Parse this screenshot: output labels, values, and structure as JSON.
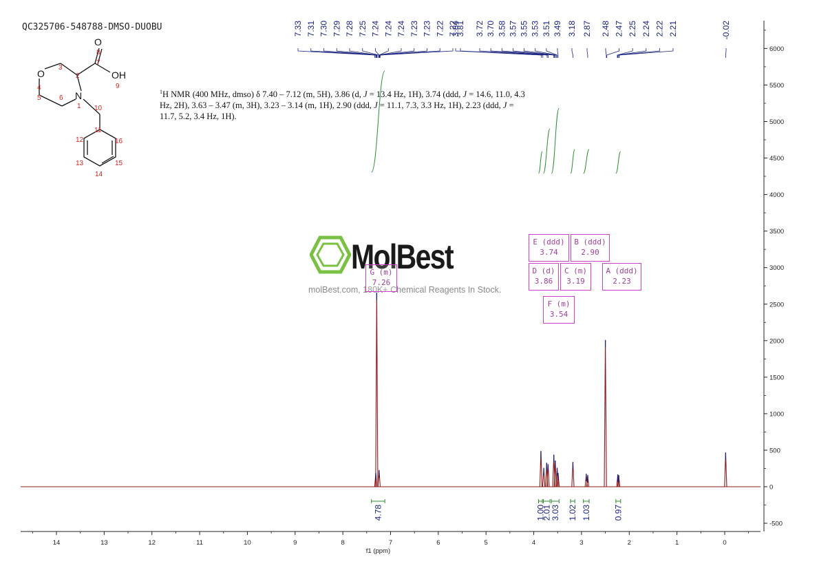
{
  "sample_id": "QC325706-548788-DMSO-DUOBU",
  "nmr_description": {
    "line1_a": "H NMR (400 MHz, dmso) δ 7.40 – 7.12 (m, 5H), 3.86 (d, ",
    "line1_j": "J",
    "line1_b": " = 13.4 Hz, 1H), 3.74 (ddd, ",
    "line1_c": " = 14.6, 11.0, 4.3",
    "line2_a": "Hz, 2H), 3.63 – 3.47 (m, 3H), 3.23 – 3.14 (m, 1H), 2.90 (ddd, ",
    "line2_b": " = 11.1, 7.3, 3.3 Hz, 1H), 2.23 (ddd, ",
    "line2_c": " =",
    "line3": "11.7, 5.2, 3.4 Hz, 1H).",
    "superscript": "1"
  },
  "watermark": {
    "logo_text": "MolBest",
    "url_text": "molBest.com, 180K+ Chemical Reagents In Stock."
  },
  "structure": {
    "atoms": [
      "O",
      "OH",
      "O",
      "N"
    ],
    "numbers": [
      "8",
      "7",
      "9",
      "3",
      "2",
      "4",
      "5",
      "1",
      "6",
      "10",
      "11",
      "12",
      "16",
      "13",
      "15",
      "14"
    ]
  },
  "multiplets": [
    {
      "label": "E (ddd)",
      "shift": "3.74"
    },
    {
      "label": "B (ddd)",
      "shift": "2.90"
    },
    {
      "label": "D (d)",
      "shift": "3.86"
    },
    {
      "label": "C (m)",
      "shift": "3.19"
    },
    {
      "label": "A (ddd)",
      "shift": "2.23"
    },
    {
      "label": "F (m)",
      "shift": "3.54"
    },
    {
      "label": "G (m)",
      "shift": "7.26"
    }
  ],
  "colors": {
    "spectrum": "#8b1a1a",
    "peak_labels": "#1a237e",
    "integrals": "#2e8b2e",
    "multiplet_boxes": "#d03fc8",
    "structure_numbers": "#d42020",
    "logo_green": "#7ac143"
  },
  "chart_data": {
    "type": "line",
    "title": "",
    "xlabel": "f1 (ppm)",
    "ylabel": "",
    "x_reversed": true,
    "xlim": [
      14.75,
      -0.75
    ],
    "ylim": [
      -600,
      6400
    ],
    "x_ticks": [
      14,
      13,
      12,
      11,
      10,
      9,
      8,
      7,
      6,
      5,
      4,
      3,
      2,
      1,
      0
    ],
    "y_ticks": [
      -500,
      0,
      500,
      1000,
      1500,
      2000,
      2500,
      3000,
      3500,
      4000,
      4500,
      5000,
      5500,
      6000
    ],
    "peaks": [
      {
        "ppm": 7.29,
        "intensity": 2650
      },
      {
        "ppm": 7.24,
        "intensity": 220
      },
      {
        "ppm": 7.31,
        "intensity": 180
      },
      {
        "ppm": 3.85,
        "intensity": 480
      },
      {
        "ppm": 3.79,
        "intensity": 250
      },
      {
        "ppm": 3.73,
        "intensity": 320
      },
      {
        "ppm": 3.7,
        "intensity": 300
      },
      {
        "ppm": 3.58,
        "intensity": 430
      },
      {
        "ppm": 3.55,
        "intensity": 350
      },
      {
        "ppm": 3.51,
        "intensity": 250
      },
      {
        "ppm": 3.49,
        "intensity": 180
      },
      {
        "ppm": 3.18,
        "intensity": 330
      },
      {
        "ppm": 2.9,
        "intensity": 170
      },
      {
        "ppm": 2.87,
        "intensity": 150
      },
      {
        "ppm": 2.5,
        "intensity": 2000
      },
      {
        "ppm": 2.24,
        "intensity": 160
      },
      {
        "ppm": 2.22,
        "intensity": 150
      },
      {
        "ppm": -0.02,
        "intensity": 460
      }
    ],
    "peak_labels": [
      "7.33",
      "7.31",
      "7.30",
      "7.29",
      "7.28",
      "7.25",
      "7.24",
      "7.24",
      "7.24",
      "7.23",
      "7.23",
      "7.22",
      "7.22",
      "3.84",
      "3.81",
      "3.72",
      "3.70",
      "3.58",
      "3.57",
      "3.55",
      "3.53",
      "3.51",
      "3.49",
      "3.18",
      "2.87",
      "2.48",
      "2.47",
      "2.25",
      "2.24",
      "2.22",
      "2.21",
      "-0.02"
    ],
    "integrals": [
      {
        "from": 7.4,
        "to": 7.12,
        "value": "4.78"
      },
      {
        "from": 3.9,
        "to": 3.82,
        "value": "1.00"
      },
      {
        "from": 3.8,
        "to": 3.66,
        "value": "2.01"
      },
      {
        "from": 3.63,
        "to": 3.47,
        "value": "3.03"
      },
      {
        "from": 3.23,
        "to": 3.14,
        "value": "1.02"
      },
      {
        "from": 2.96,
        "to": 2.84,
        "value": "1.03"
      },
      {
        "from": 2.28,
        "to": 2.18,
        "value": "0.97"
      }
    ]
  }
}
